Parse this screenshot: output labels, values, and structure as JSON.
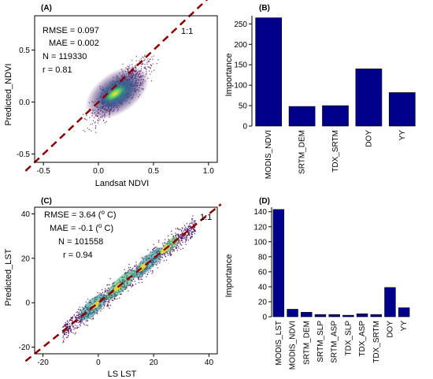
{
  "colors": {
    "bar": "#00008b",
    "one_to_one": "#8b0000",
    "density_low": "#440154",
    "density_mid": "#21918c",
    "density_high": "#fde725"
  },
  "chart_data": [
    {
      "panel": "(A)",
      "type": "scatter",
      "xlabel": "Landsat NDVI",
      "ylabel": "Predicted_NDVI",
      "xlim": [
        -0.58,
        1.08
      ],
      "ylim": [
        -0.58,
        0.83
      ],
      "xticks": [
        "-0.5",
        "0.0",
        "0.5",
        "1.0"
      ],
      "xtick_values": [
        -0.5,
        0.0,
        0.5,
        1.0
      ],
      "yticks": [
        "-0.5",
        "0.0",
        "0.5"
      ],
      "ytick_values": [
        -0.5,
        0.0,
        0.5
      ],
      "one_to_one_label": "1:1",
      "stats": [
        "RMSE = 0.097",
        "MAE = 0.002",
        "N = 119330",
        "r = 0.81"
      ],
      "density_note": "point density colored purple (low) to yellow (high); cloud centred around (0.15, 0.1)"
    },
    {
      "panel": "(B)",
      "type": "bar",
      "ylabel": "Importance",
      "categories": [
        "MODIS_NDVI",
        "SRTM_DEM",
        "TDX_SRTM",
        "DOY",
        "YY"
      ],
      "values": [
        265,
        48,
        50,
        140,
        82
      ],
      "ylim": [
        0,
        270
      ],
      "yticks": [
        "0",
        "50",
        "100",
        "150",
        "200",
        "250"
      ],
      "ytick_values": [
        0,
        50,
        100,
        150,
        200,
        250
      ]
    },
    {
      "panel": "(C)",
      "type": "scatter",
      "xlabel": "LS LST",
      "ylabel": "Predicted_LST",
      "xlim": [
        -23,
        43
      ],
      "ylim": [
        -23,
        43
      ],
      "xticks": [
        "-20",
        "0",
        "20",
        "40"
      ],
      "xtick_values": [
        -20,
        0,
        20,
        40
      ],
      "yticks": [
        "-20",
        "0",
        "20",
        "40"
      ],
      "ytick_values": [
        -20,
        0,
        20,
        40
      ],
      "one_to_one_label": "1:1",
      "stats": [
        {
          "pre": "RMSE =  3.64 (",
          "sup": "o",
          "post": " C)"
        },
        {
          "pre": "MAE = -0.1 (",
          "sup": "o",
          "post": " C)"
        },
        {
          "pre": "N = 101558",
          "sup": "",
          "post": ""
        },
        {
          "pre": "r =  0.94",
          "sup": "",
          "post": ""
        }
      ],
      "density_note": "point density colored purple (low) to yellow (high) along the 1:1 line"
    },
    {
      "panel": "(D)",
      "type": "bar",
      "ylabel": "Importance",
      "categories": [
        "MODIS_LST",
        "MODIS_NDVI",
        "SRTM_DEM",
        "SRTM_SLP",
        "SRTM_ASP",
        "TDX_SLP",
        "TDX_ASP",
        "TDX_SRTM",
        "DOY",
        "YY"
      ],
      "values": [
        143,
        10,
        6,
        3,
        3,
        2,
        4,
        3,
        39,
        12
      ],
      "ylim": [
        0,
        146
      ],
      "yticks": [
        "0",
        "20",
        "40",
        "60",
        "80",
        "100",
        "120",
        "140"
      ],
      "ytick_values": [
        0,
        20,
        40,
        60,
        80,
        100,
        120,
        140
      ]
    }
  ]
}
